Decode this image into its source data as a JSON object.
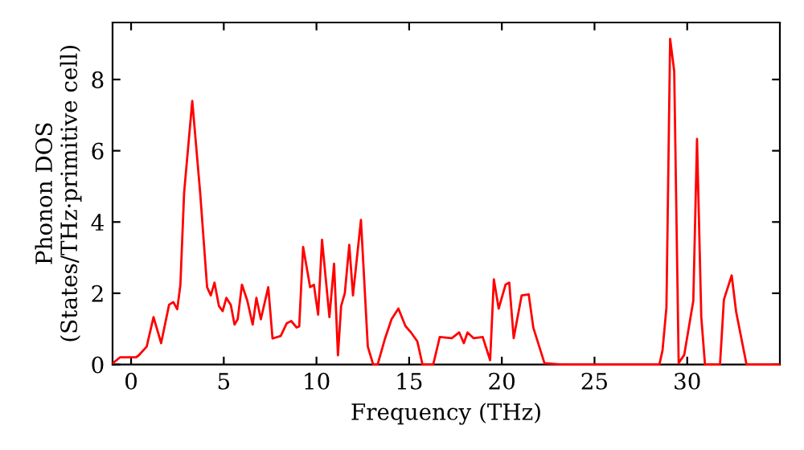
{
  "chart_data": {
    "type": "line",
    "xlabel": "Frequency (THz)",
    "ylabel": "Phonon DOS\n(States/THz·primitive cell)",
    "xlim": [
      -1.0,
      35
    ],
    "ylim": [
      0,
      9.6
    ],
    "xticks": [
      0,
      5,
      10,
      15,
      20,
      25,
      30
    ],
    "yticks": [
      0,
      2,
      4,
      6,
      8
    ],
    "grid": false,
    "legend": false,
    "marker": "none",
    "line_style": "solid",
    "series": [
      {
        "color": "#ff0000",
        "x": [
          -0.95,
          -0.6,
          0.26,
          0.4,
          0.84,
          1.21,
          1.62,
          2.05,
          2.28,
          2.49,
          2.66,
          2.86,
          3.3,
          3.73,
          4.1,
          4.3,
          4.5,
          4.74,
          4.94,
          5.14,
          5.38,
          5.58,
          5.75,
          5.98,
          6.27,
          6.56,
          6.76,
          7.0,
          7.4,
          7.63,
          8.07,
          8.4,
          8.64,
          8.93,
          9.07,
          9.28,
          9.66,
          9.86,
          10.09,
          10.3,
          10.7,
          10.95,
          11.16,
          11.33,
          11.53,
          11.77,
          11.97,
          12.4,
          12.77,
          13.06,
          13.3,
          13.7,
          14.05,
          14.42,
          14.8,
          15.1,
          15.44,
          15.72,
          16.3,
          16.65,
          17.3,
          17.7,
          17.95,
          18.15,
          18.47,
          18.97,
          19.37,
          19.57,
          19.83,
          20.2,
          20.4,
          20.64,
          21.07,
          21.45,
          21.7,
          22.3,
          23.2,
          28.5,
          28.67,
          28.88,
          29.08,
          29.3,
          29.54,
          29.84,
          30.33,
          30.53,
          30.76,
          30.96,
          31.77,
          31.98,
          32.4,
          32.64,
          33.2,
          34.95
        ],
        "values": [
          0.05,
          0.2,
          0.2,
          0.25,
          0.5,
          1.33,
          0.6,
          1.68,
          1.75,
          1.55,
          2.24,
          4.82,
          7.4,
          4.8,
          2.17,
          1.94,
          2.3,
          1.64,
          1.5,
          1.87,
          1.67,
          1.12,
          1.27,
          2.24,
          1.79,
          1.12,
          1.87,
          1.27,
          2.17,
          0.73,
          0.8,
          1.16,
          1.22,
          1.04,
          1.07,
          3.3,
          2.17,
          2.24,
          1.4,
          3.5,
          1.33,
          2.83,
          0.26,
          1.64,
          2.0,
          3.36,
          1.94,
          4.06,
          0.5,
          0,
          0,
          0.73,
          1.27,
          1.57,
          1.08,
          0.9,
          0.65,
          0,
          0,
          0.77,
          0.74,
          0.9,
          0.6,
          0.9,
          0.74,
          0.77,
          0.12,
          2.39,
          1.57,
          2.24,
          2.3,
          0.74,
          1.94,
          1.97,
          1.03,
          0.04,
          0,
          0,
          0.4,
          1.6,
          9.14,
          8.23,
          0.04,
          0.27,
          1.79,
          6.33,
          1.33,
          0,
          0,
          1.82,
          2.5,
          1.48,
          0,
          0
        ]
      }
    ]
  }
}
